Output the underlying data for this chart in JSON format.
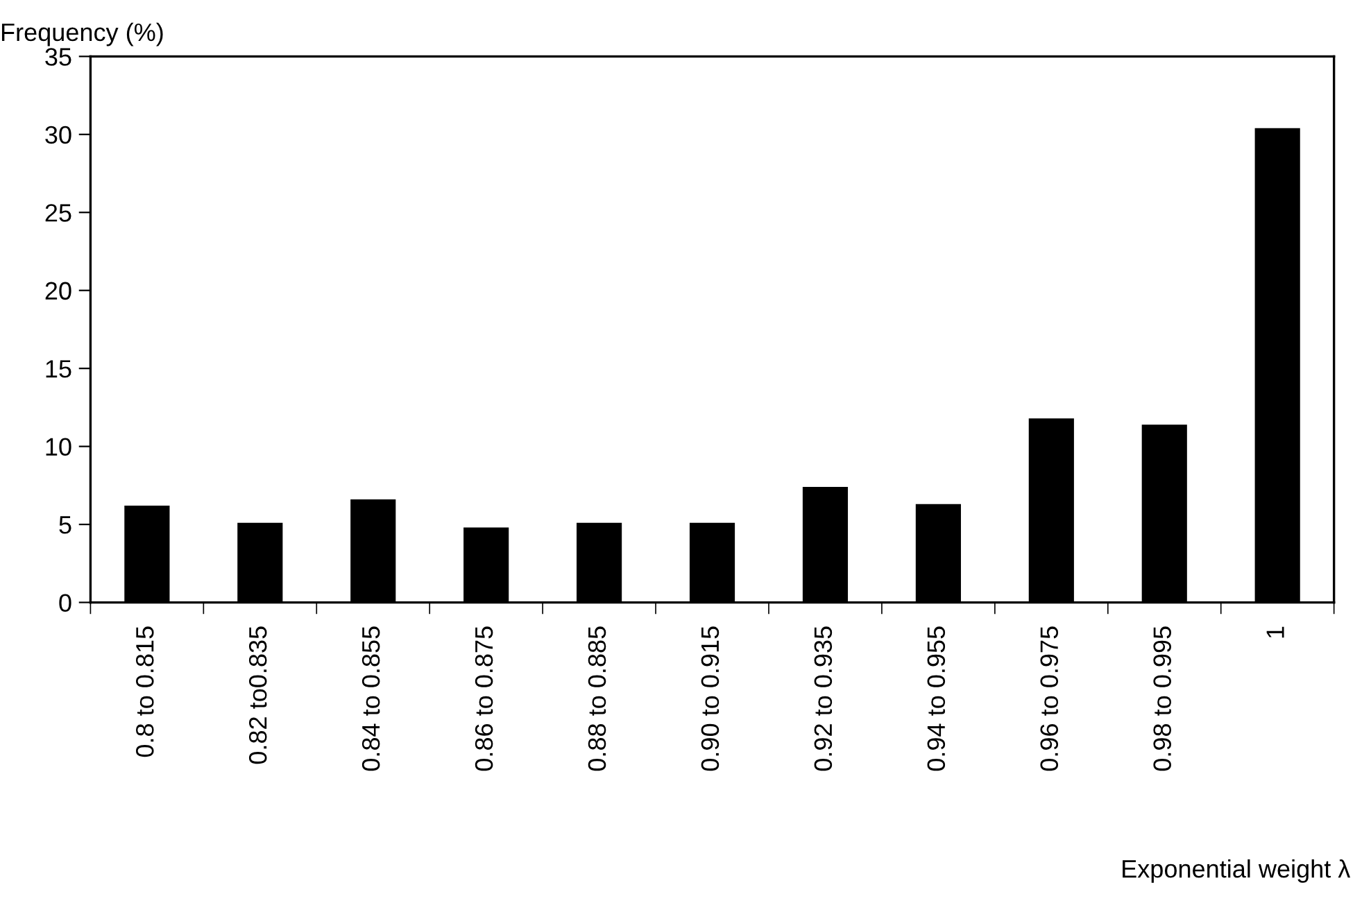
{
  "chart_data": {
    "type": "bar",
    "ylabel": "Frequency (%)",
    "xlabel": "Exponential weight λ",
    "categories": [
      "0.8 to 0.815",
      "0.82 to0.835",
      "0.84 to 0.855",
      "0.86 to 0.875",
      "0.88 to 0.885",
      "0.90 to 0.915",
      "0.92 to 0.935",
      "0.94 to 0.955",
      "0.96 to 0.975",
      "0.98 to 0.995",
      "1"
    ],
    "values": [
      6.2,
      5.1,
      6.6,
      4.8,
      5.1,
      5.1,
      7.4,
      6.3,
      11.8,
      11.4,
      30.4
    ],
    "color": "#000000",
    "ylim": [
      0,
      35
    ],
    "yticks": [
      0,
      5,
      10,
      15,
      20,
      25,
      30,
      35
    ],
    "grid": false,
    "legend": false
  }
}
